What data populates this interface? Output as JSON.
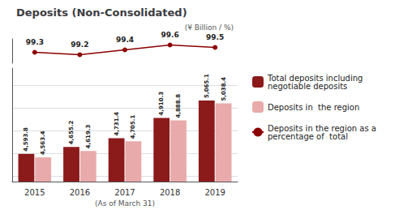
{
  "chart_data": {
    "type": "bar",
    "title": "Deposits (Non-Consolidated)",
    "subtitle": "(¥ Billion / %)",
    "xlabel": "(As of March 31)",
    "categories": [
      "2015",
      "2016",
      "2017",
      "2018",
      "2019"
    ],
    "series": [
      {
        "name": "Total deposits including negotiable deposits",
        "color": "#8B1A1A",
        "values": [
          4593.8,
          4655.2,
          4731.4,
          4910.3,
          5065.1
        ],
        "value_labels": [
          "4,593.8",
          "4,655.2",
          "4,731.4",
          "4,910.3",
          "5,065.1"
        ]
      },
      {
        "name": "Deposits in  the region",
        "color": "#E8AAAA",
        "values": [
          4563.4,
          4619.3,
          4705.1,
          4888.8,
          5038.4
        ],
        "value_labels": [
          "4,563.4",
          "4,619.3",
          "4,705.1",
          "4,888.8",
          "5,038.4"
        ]
      },
      {
        "name": "Deposits in the region as a percentage of  total",
        "type": "line",
        "axis": "y2",
        "color": "#8B0000",
        "marker": "circle",
        "values": [
          99.3,
          99.2,
          99.4,
          99.6,
          99.5
        ]
      }
    ],
    "ylim": [
      4350,
      5350
    ],
    "yticks": [
      4400,
      4600,
      4800,
      5000,
      5200
    ],
    "y2lim": [
      98.85,
      99.85
    ],
    "grid": true,
    "legend": "right",
    "data_labels": true,
    "tick_labels": "x"
  }
}
